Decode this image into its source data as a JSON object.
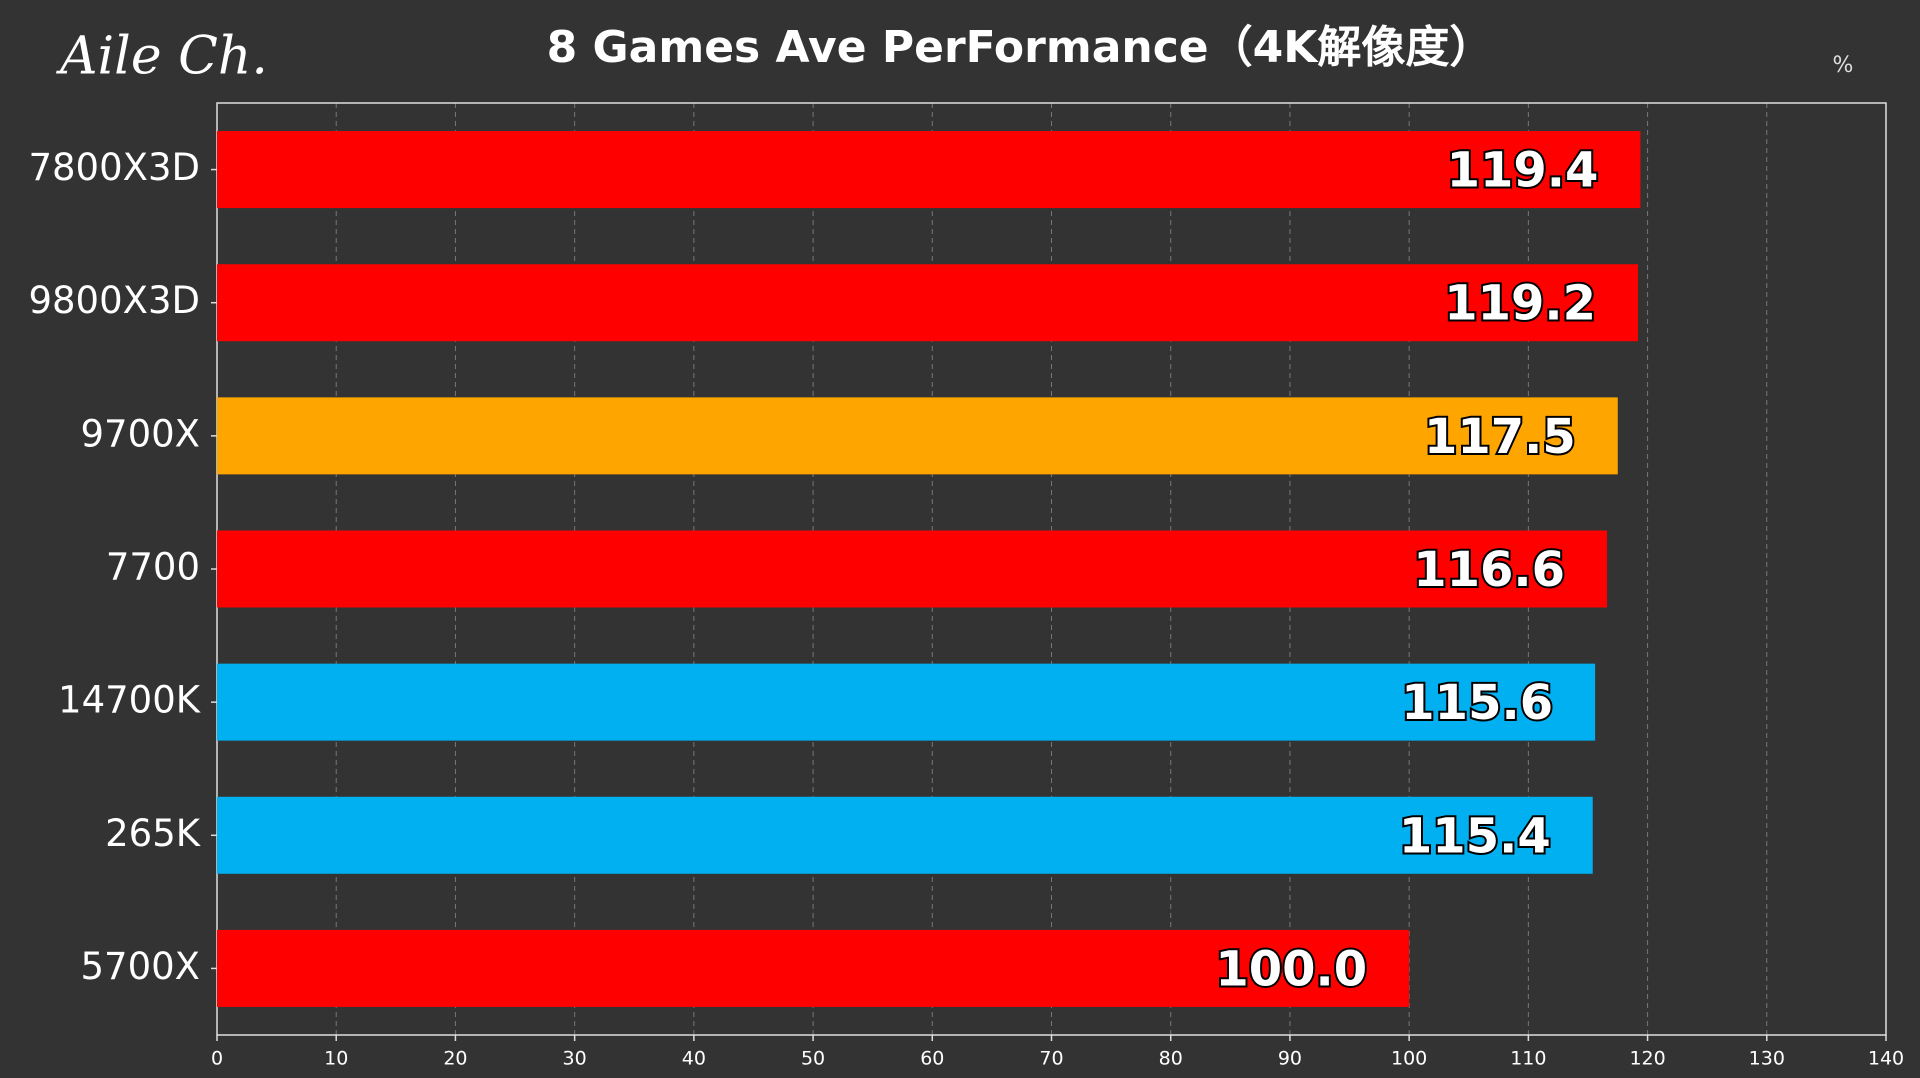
{
  "chart_data": {
    "type": "bar",
    "orientation": "horizontal",
    "title": "8 Games Ave PerFormance（4K解像度）",
    "watermark": "Aile Ch.",
    "unit": "%",
    "categories": [
      "7800X3D",
      "9800X3D",
      "9700X",
      "7700",
      "14700K",
      "265K",
      "5700X"
    ],
    "values": [
      119.4,
      119.2,
      117.5,
      116.6,
      115.6,
      115.4,
      100
    ],
    "value_labels": [
      "119.4",
      "119.2",
      "117.5",
      "116.6",
      "115.6",
      "115.4",
      "100.0"
    ],
    "colors": [
      "#ff0000",
      "#ff0000",
      "#ffa500",
      "#ff0000",
      "#00b0f0",
      "#00b0f0",
      "#ff0000"
    ],
    "xlim": [
      0,
      140
    ],
    "xticks": [
      0,
      10,
      20,
      30,
      40,
      50,
      60,
      70,
      80,
      90,
      100,
      110,
      120,
      130,
      140
    ],
    "grid": true
  }
}
